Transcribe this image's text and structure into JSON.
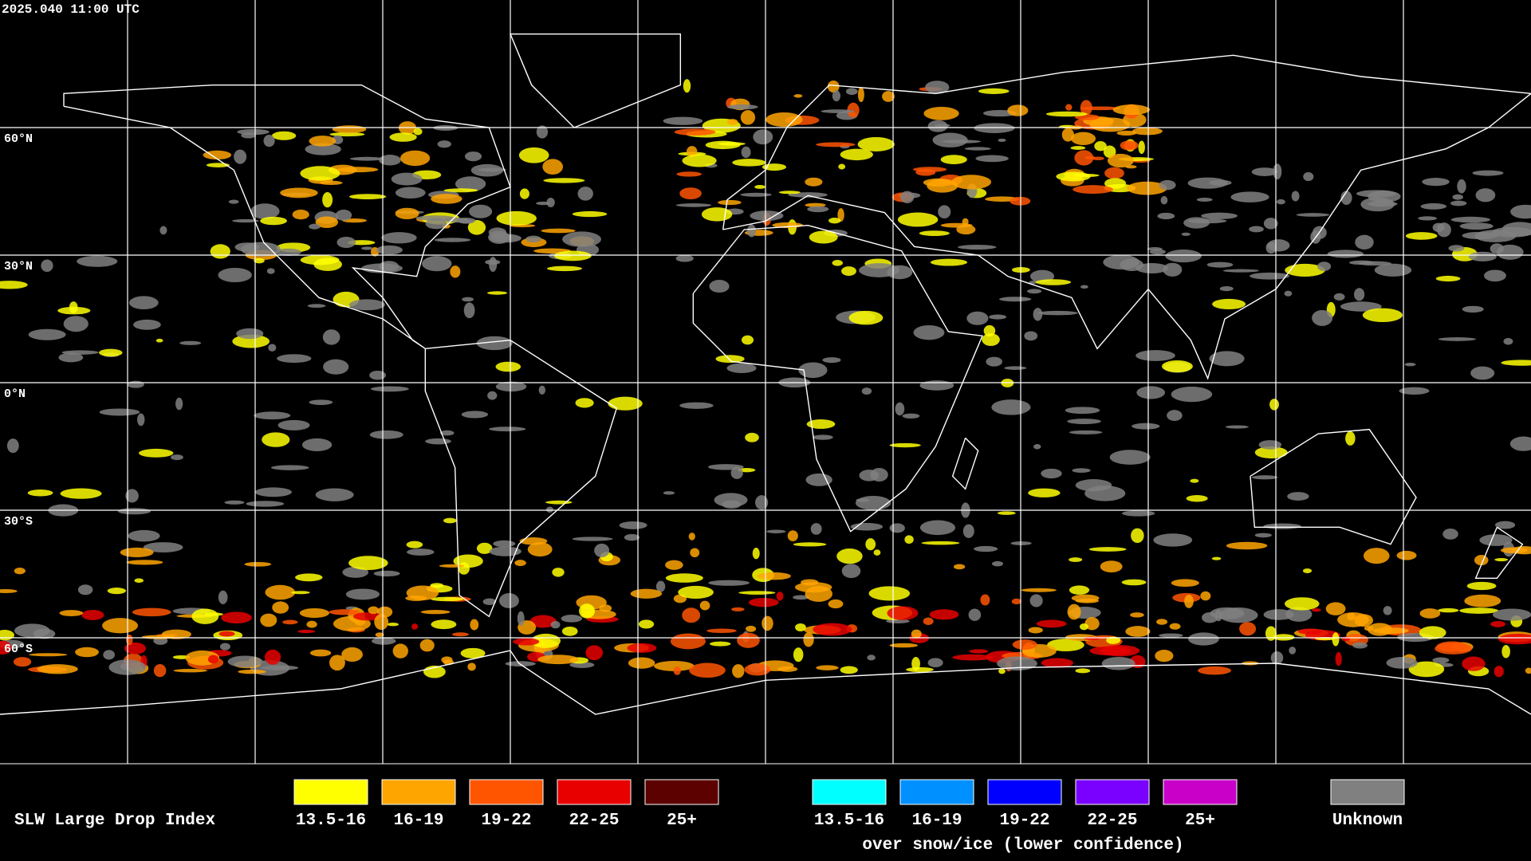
{
  "timestamp": "2025.040 11:00 UTC",
  "latitude_labels": [
    "60°N",
    "30°N",
    "0°N",
    "30°S",
    "60°S"
  ],
  "legend": {
    "title": "SLW Large Drop Index",
    "groups": [
      {
        "items": [
          {
            "label": "13.5-16",
            "color": "#ffff00"
          },
          {
            "label": "16-19",
            "color": "#ffa500"
          },
          {
            "label": "19-22",
            "color": "#ff5500"
          },
          {
            "label": "22-25",
            "color": "#e80000"
          },
          {
            "label": "25+",
            "color": "#5c0000"
          }
        ]
      },
      {
        "subtitle": "over snow/ice (lower confidence)",
        "items": [
          {
            "label": "13.5-16",
            "color": "#00ffff"
          },
          {
            "label": "16-19",
            "color": "#0090ff"
          },
          {
            "label": "19-22",
            "color": "#0000ff"
          },
          {
            "label": "22-25",
            "color": "#7a00ff"
          },
          {
            "label": "25+",
            "color": "#c800c8"
          }
        ]
      },
      {
        "items": [
          {
            "label": "Unknown",
            "color": "#808080"
          }
        ]
      }
    ]
  }
}
